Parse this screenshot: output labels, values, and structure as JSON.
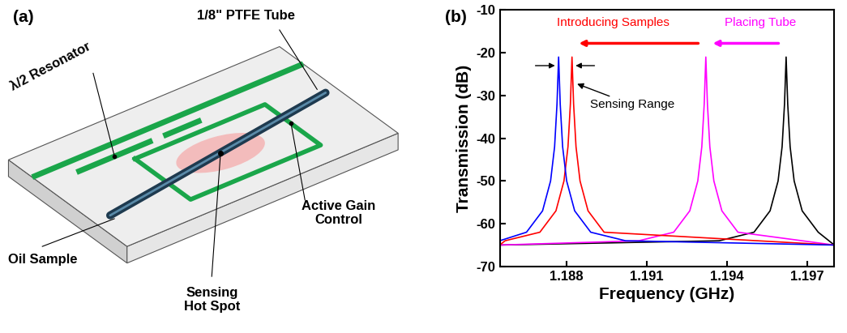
{
  "diagram": {
    "label": "(a)",
    "texts": {
      "tube": "1/8\" PTFE Tube",
      "resonator": "λ/2 Resonator",
      "gain": "Active Gain\nControl",
      "sample": "Oil Sample",
      "hotspot": "Sensing\nHot Spot"
    }
  },
  "chart_data": {
    "type": "line",
    "label": "(b)",
    "x_label": "Frequency (GHz)",
    "y_label": "Transmission (dB)",
    "xlim": [
      1.1855,
      1.198
    ],
    "xticks": [
      1.188,
      1.191,
      1.194,
      1.197
    ],
    "ylim": [
      -70,
      -10
    ],
    "yticks": [
      -70,
      -60,
      -50,
      -40,
      -30,
      -20,
      -10
    ],
    "annotations": [
      {
        "text": "Introducing Samples",
        "color": "#ff0000"
      },
      {
        "text": "Placing Tube",
        "color": "#ff00ff"
      },
      {
        "text": "Sensing Range",
        "color": "#000000"
      }
    ],
    "series": [
      {
        "color": "#000000",
        "x": [
          1.1855,
          1.1937,
          1.195,
          1.1956,
          1.1959,
          1.19605,
          1.19614,
          1.1962,
          1.19626,
          1.19635,
          1.1965,
          1.1968,
          1.1974,
          1.198
        ],
        "values": [
          -65,
          -64,
          -62,
          -57,
          -50,
          -42,
          -32,
          -21,
          -32,
          -42,
          -50,
          -57,
          -62,
          -65
        ]
      },
      {
        "color": "#ff00ff",
        "x": [
          1.1855,
          1.1907,
          1.192,
          1.1926,
          1.1929,
          1.19305,
          1.19314,
          1.1932,
          1.19326,
          1.19335,
          1.1935,
          1.1938,
          1.1944,
          1.198
        ],
        "values": [
          -65,
          -64,
          -62,
          -57,
          -50,
          -42,
          -32,
          -21,
          -32,
          -42,
          -50,
          -57,
          -62,
          -65
        ]
      },
      {
        "color": "#ff0000",
        "x": [
          1.1855,
          1.1857,
          1.187,
          1.1876,
          1.1879,
          1.18805,
          1.18814,
          1.1882,
          1.18826,
          1.18835,
          1.1885,
          1.1888,
          1.1894,
          1.198
        ],
        "values": [
          -65,
          -64,
          -62,
          -57,
          -50,
          -42,
          -32,
          -21,
          -32,
          -42,
          -50,
          -57,
          -62,
          -65
        ]
      },
      {
        "color": "#0000ff",
        "x": [
          1.1855,
          1.1865,
          1.1871,
          1.1874,
          1.18755,
          1.18764,
          1.1877,
          1.18776,
          1.18785,
          1.188,
          1.1883,
          1.1889,
          1.1902,
          1.198
        ],
        "values": [
          -64,
          -62,
          -57,
          -50,
          -42,
          -32,
          -21,
          -32,
          -42,
          -50,
          -57,
          -62,
          -64,
          -65
        ]
      }
    ]
  }
}
